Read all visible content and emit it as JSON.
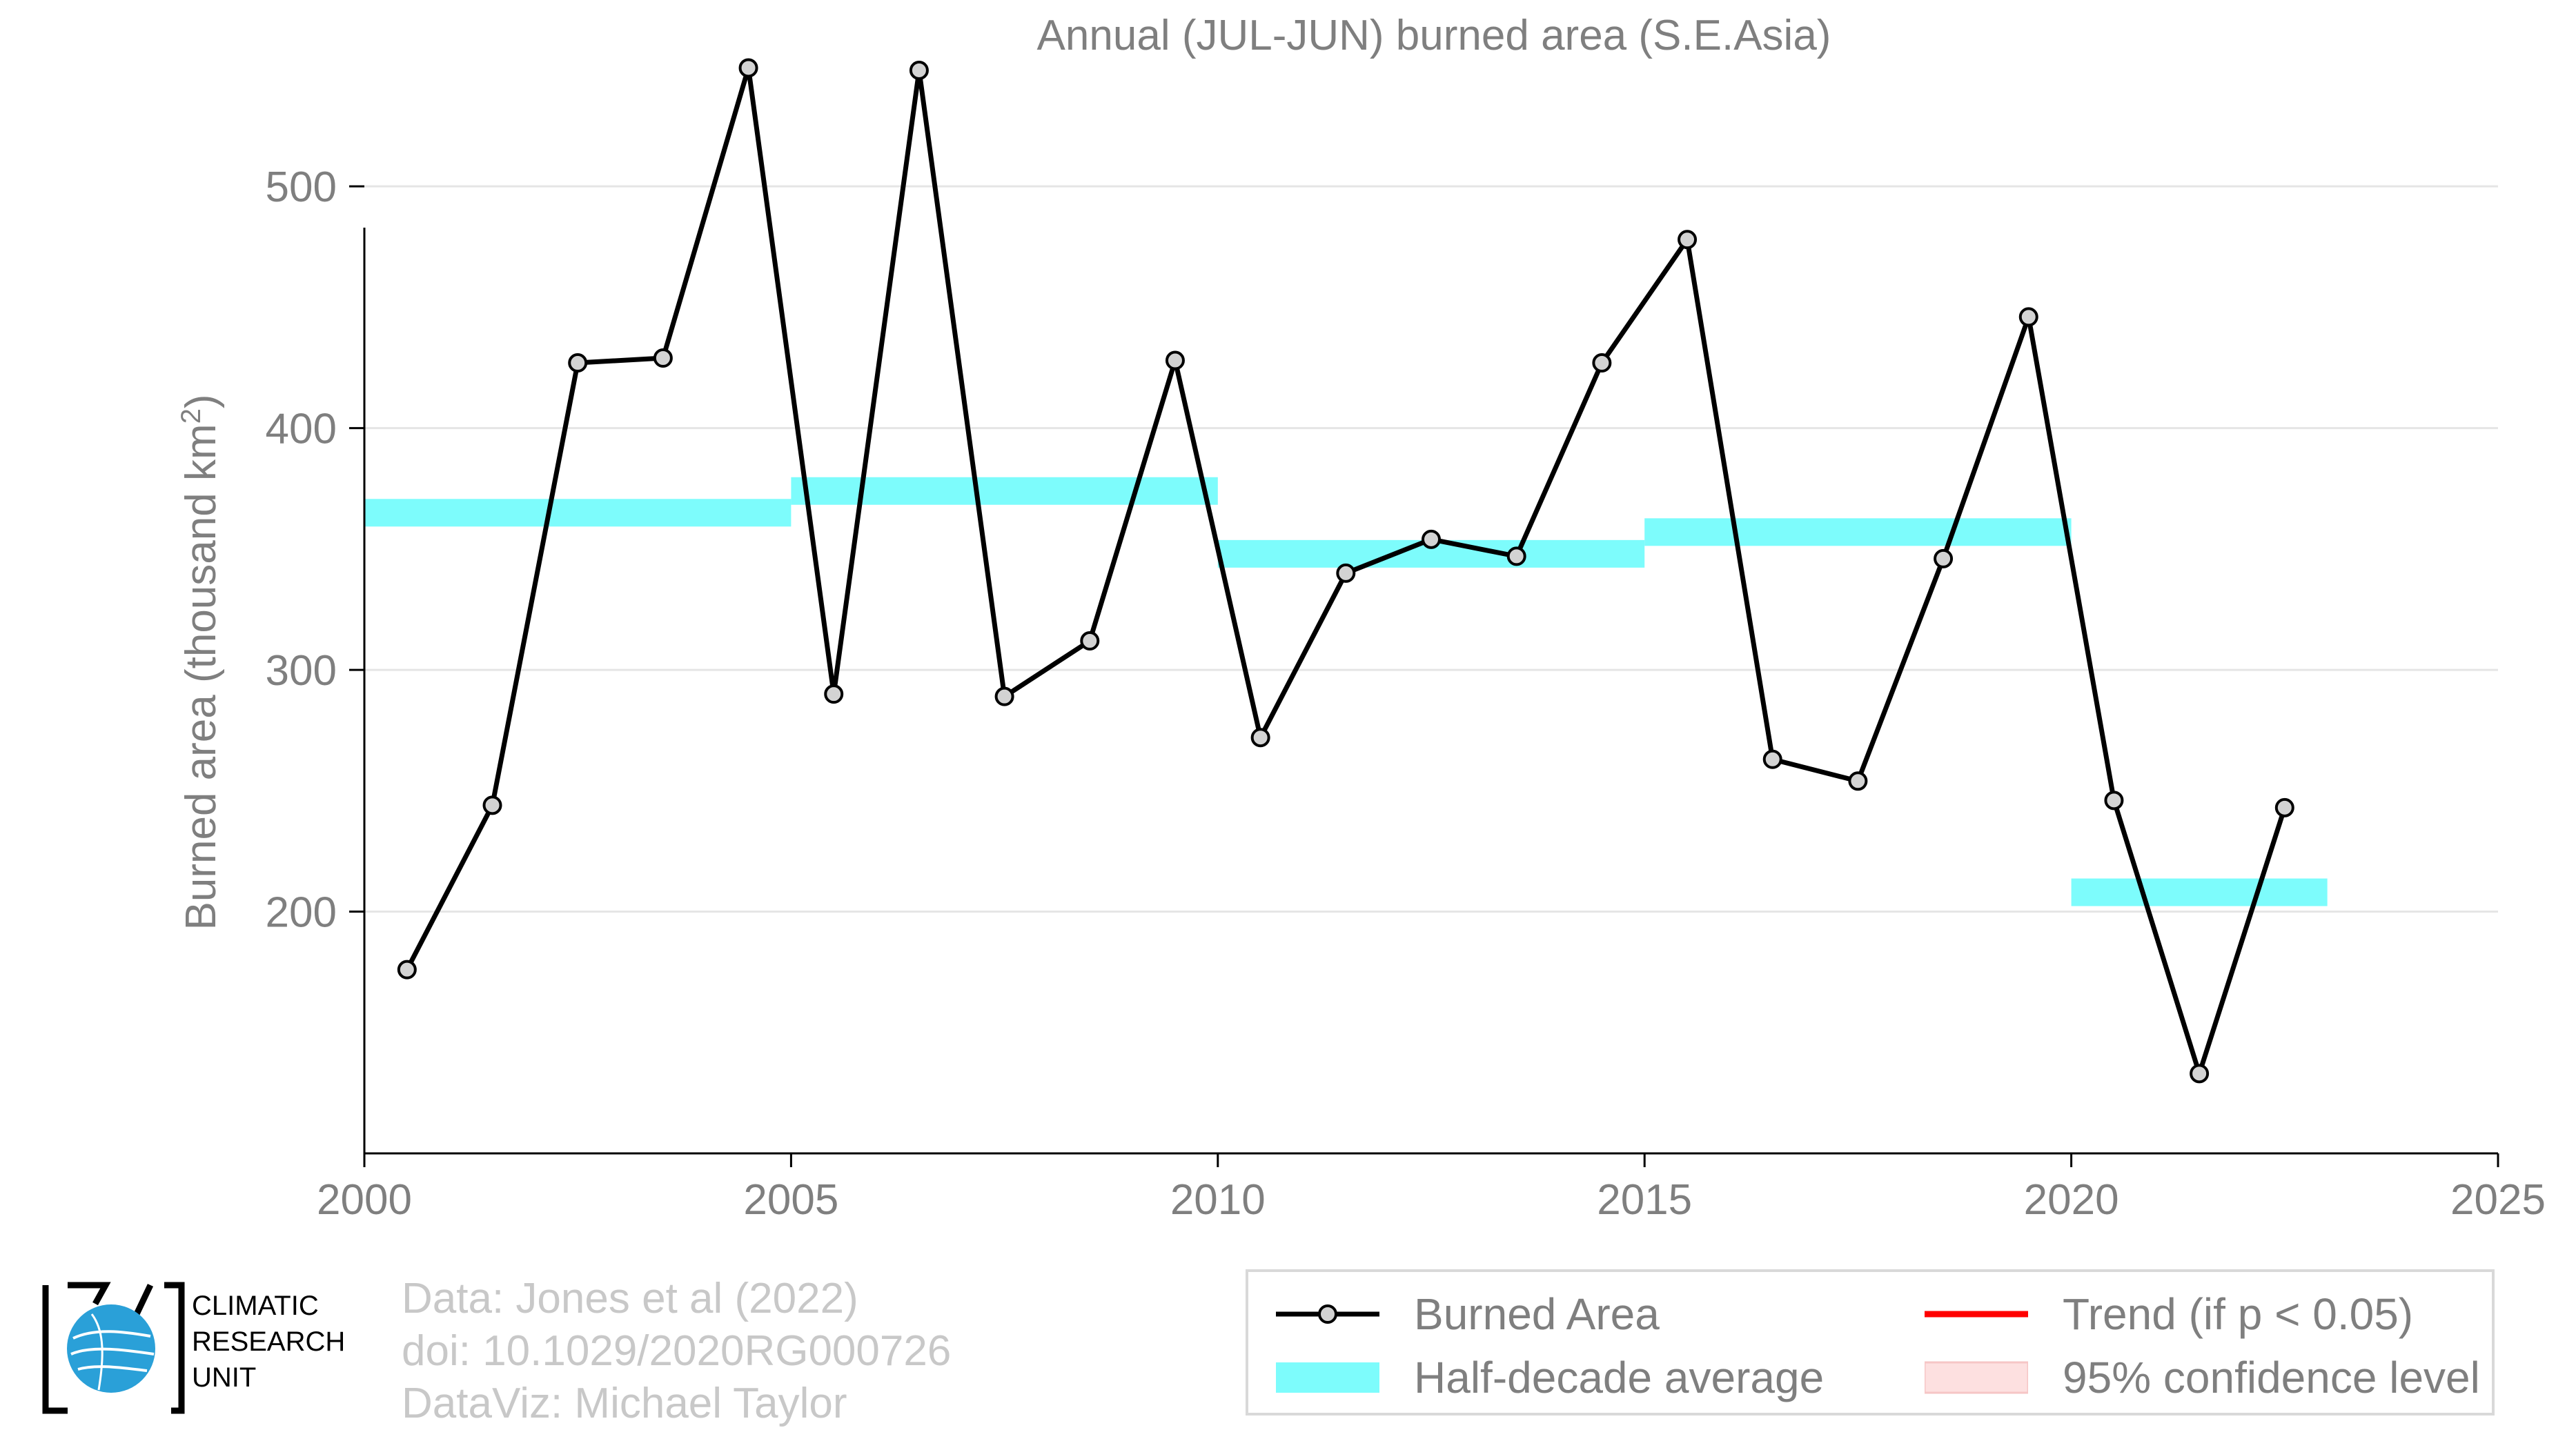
{
  "chart_data": {
    "type": "line",
    "title": "Annual (JUL-JUN) burned area (S.E.Asia)",
    "ylabel": "Burned area (thousand km",
    "ylabel_sup": "2",
    "ylabel_end": ")",
    "xlabel": "",
    "xlim": [
      2000,
      2025
    ],
    "ylim": [
      100,
      540
    ],
    "xticks": [
      2000,
      2005,
      2010,
      2015,
      2020,
      2025
    ],
    "yticks": [
      200,
      300,
      400,
      500
    ],
    "grid": "horizontal",
    "legend_position": "bottom-right",
    "colors": {
      "line": "#000000",
      "marker_fill": "#d3d3d3",
      "half_decade": "#7dfcfc",
      "trend": "#ff0000",
      "confidence": "#fde0e0",
      "title_text": "#7f7f7f",
      "grid": "#e5e5e5"
    },
    "series": [
      {
        "name": "Burned Area",
        "x": [
          2000.5,
          2001.5,
          2002.5,
          2003.5,
          2004.5,
          2005.5,
          2006.5,
          2007.5,
          2008.5,
          2009.5,
          2010.5,
          2011.5,
          2012.5,
          2013.5,
          2014.5,
          2015.5,
          2016.5,
          2017.5,
          2018.5,
          2019.5,
          2020.5,
          2021.5,
          2022.5
        ],
        "values": [
          176,
          244,
          427,
          429,
          549,
          290,
          548,
          289,
          312,
          428,
          272,
          340,
          354,
          347,
          427,
          478,
          263,
          254,
          346,
          446,
          246,
          133,
          243
        ]
      }
    ],
    "half_decade_averages": [
      {
        "x_start": 2000,
        "x_end": 2005,
        "value": 365
      },
      {
        "x_start": 2005,
        "x_end": 2010,
        "value": 374
      },
      {
        "x_start": 2010,
        "x_end": 2015,
        "value": 348
      },
      {
        "x_start": 2015,
        "x_end": 2020,
        "value": 357
      },
      {
        "x_start": 2020,
        "x_end": 2023,
        "value": 208
      }
    ],
    "legend": [
      {
        "key": "line",
        "label": "Burned Area"
      },
      {
        "key": "trend",
        "label": "Trend (if p < 0.05)"
      },
      {
        "key": "band",
        "label": "Half-decade average"
      },
      {
        "key": "ci",
        "label": "95% confidence level"
      }
    ]
  },
  "credits": {
    "line1": "Data: Jones et al (2022)",
    "line2": "doi: 10.1029/2020RG000726",
    "line3": "DataViz: Michael Taylor"
  },
  "logo": {
    "line1": "CLIMATIC",
    "line2": "RESEARCH",
    "line3": "UNIT"
  }
}
